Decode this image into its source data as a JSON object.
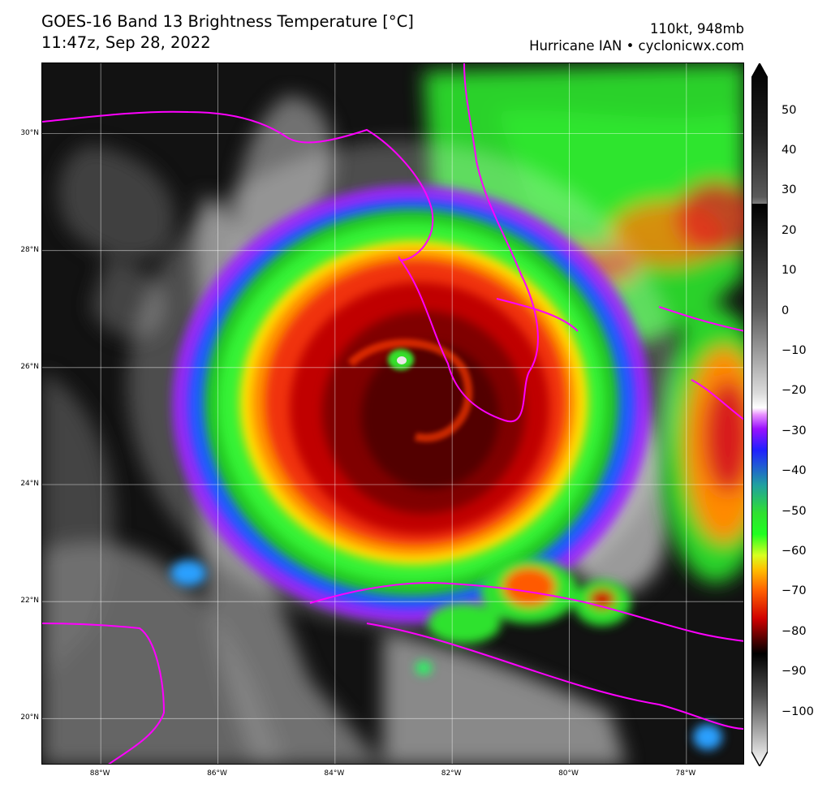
{
  "header": {
    "title_line1": "GOES-16 Band 13 Brightness Temperature [°C]",
    "title_line2": "11:47z, Sep 28, 2022",
    "storm_line1": "110kt, 948mb",
    "storm_line2": "Hurricane IAN • cyclonicwx.com"
  },
  "map": {
    "lon_range": [
      -89.0,
      -77.0
    ],
    "lat_range": [
      19.2,
      31.2
    ],
    "gridlines": true,
    "coastline_color": "#ff00ff",
    "lat_ticks": [
      {
        "value": 30,
        "label": "30°N"
      },
      {
        "value": 28,
        "label": "28°N"
      },
      {
        "value": 26,
        "label": "26°N"
      },
      {
        "value": 24,
        "label": "24°N"
      },
      {
        "value": 22,
        "label": "22°N"
      },
      {
        "value": 20,
        "label": "20°N"
      }
    ],
    "lon_ticks": [
      {
        "value": -88,
        "label": "88°W"
      },
      {
        "value": -86,
        "label": "86°W"
      },
      {
        "value": -84,
        "label": "84°W"
      },
      {
        "value": -82,
        "label": "82°W"
      },
      {
        "value": -80,
        "label": "80°W"
      },
      {
        "value": -78,
        "label": "78°W"
      }
    ],
    "hurricane_eye": {
      "lon": -82.9,
      "lat": 26.0
    }
  },
  "colorbar": {
    "range": [
      -110,
      58
    ],
    "ticks": [
      50,
      40,
      30,
      20,
      10,
      0,
      -10,
      -20,
      -30,
      -40,
      -50,
      -60,
      -70,
      -80,
      -90,
      -100
    ],
    "tick_labels": [
      "50",
      "40",
      "30",
      "20",
      "10",
      "0",
      "−10",
      "−20",
      "−30",
      "−40",
      "−50",
      "−60",
      "−70",
      "−80",
      "−90",
      "−100"
    ]
  }
}
